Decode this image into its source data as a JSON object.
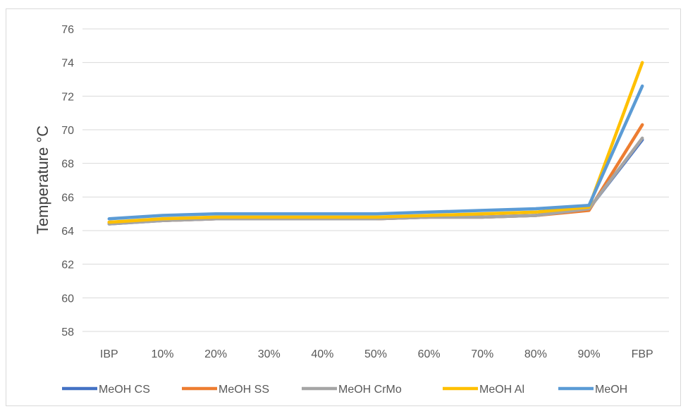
{
  "chart_data": {
    "type": "line",
    "title": "",
    "xlabel": "",
    "ylabel": "Temperature °C",
    "categories": [
      "IBP",
      "10%",
      "20%",
      "30%",
      "40%",
      "50%",
      "60%",
      "70%",
      "80%",
      "90%",
      "FBP"
    ],
    "ylim": [
      58,
      76
    ],
    "yticks": [
      58,
      60,
      62,
      64,
      66,
      68,
      70,
      72,
      74,
      76
    ],
    "grid": "horizontal",
    "legend_position": "bottom",
    "series": [
      {
        "name": "MeOH CS",
        "color": "#4472C4",
        "values": [
          64.4,
          64.6,
          64.7,
          64.7,
          64.7,
          64.7,
          64.8,
          64.8,
          64.9,
          65.3,
          69.4
        ]
      },
      {
        "name": "MeOH SS",
        "color": "#ED7D31",
        "values": [
          64.5,
          64.6,
          64.7,
          64.7,
          64.7,
          64.7,
          64.8,
          64.8,
          64.9,
          65.2,
          70.3
        ]
      },
      {
        "name": "MeOH CrMo",
        "color": "#A5A5A5",
        "values": [
          64.4,
          64.6,
          64.7,
          64.7,
          64.7,
          64.7,
          64.8,
          64.8,
          64.9,
          65.3,
          69.5
        ]
      },
      {
        "name": "MeOH Al",
        "color": "#FFC000",
        "values": [
          64.5,
          64.7,
          64.8,
          64.8,
          64.8,
          64.8,
          64.9,
          65.0,
          65.1,
          65.4,
          74.0
        ]
      },
      {
        "name": "MeOH",
        "color": "#5B9BD5",
        "values": [
          64.7,
          64.9,
          65.0,
          65.0,
          65.0,
          65.0,
          65.1,
          65.2,
          65.3,
          65.5,
          72.6
        ]
      }
    ]
  }
}
